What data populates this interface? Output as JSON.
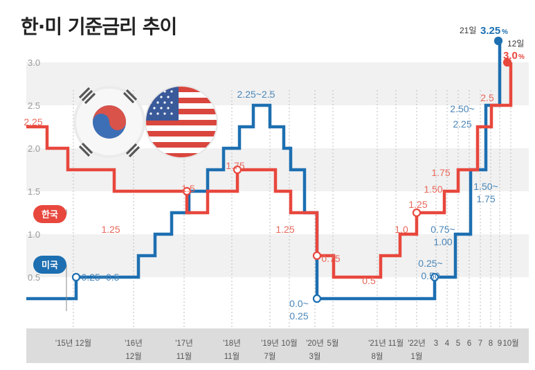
{
  "title": "한·미 기준금리 추이",
  "legend": {
    "korea": "한국",
    "us": "미국"
  },
  "colors": {
    "korea": "#e8473d",
    "us": "#1d6fb1",
    "korea_label": "#e8675a",
    "us_label": "#4a86b8",
    "band": "#f1f1f1",
    "axis_bar": "#dcdcdc"
  },
  "icons": [
    "korea-flag-icon",
    "us-flag-icon"
  ],
  "chart_data": {
    "type": "line",
    "step": true,
    "title": "한·미 기준금리 추이",
    "ylim": [
      0,
      3.25
    ],
    "y_ticks": [
      "0.5",
      "1.0",
      "1.5",
      "2.0",
      "2.5",
      "3.0"
    ],
    "x_ticks": [
      [
        "'15년 12월"
      ],
      [
        "'16년",
        "12월"
      ],
      [
        "'17년",
        "11월"
      ],
      [
        "'18년",
        "11월"
      ],
      [
        "'19년",
        "7월"
      ],
      [
        "10월"
      ],
      [
        "'20년",
        "3월"
      ],
      [
        "5월"
      ],
      [
        "'21년",
        "8월"
      ],
      [
        "11월"
      ],
      [
        "'22년",
        "1월"
      ],
      [
        "3"
      ],
      [
        "4"
      ],
      [
        "5"
      ],
      [
        "6"
      ],
      [
        "7"
      ],
      [
        "8"
      ],
      [
        "9"
      ],
      [
        "10월"
      ]
    ],
    "series": [
      {
        "name": "한국",
        "steps": [
          2.25,
          2.0,
          1.75,
          1.5,
          1.25,
          1.5,
          1.75,
          1.5,
          1.25,
          0.75,
          0.5,
          0.75,
          1.0,
          1.25,
          1.5,
          1.75,
          2.25,
          2.5,
          3.0
        ]
      },
      {
        "name": "미국",
        "steps": [
          0.25,
          0.5,
          0.75,
          1.0,
          1.25,
          1.5,
          1.75,
          2.0,
          2.25,
          2.5,
          2.25,
          2.0,
          1.75,
          1.25,
          0.25,
          0.5,
          1.0,
          1.75,
          2.5,
          3.25
        ]
      }
    ],
    "annotations": {
      "korea": [
        "2.25",
        "1.25",
        "1.5",
        "1.75",
        "1.25",
        "0.75",
        "0.5",
        "1.0",
        "1.25",
        "1.50",
        "1.75",
        "2.5"
      ],
      "us": [
        "0.25~0.5",
        "2.25~2.5",
        "0.0~",
        "0.25",
        "0.25~",
        "0.50",
        "0.75~",
        "1.00",
        "1.50~",
        "1.75",
        "2.50~",
        "2.25"
      ],
      "end_us_day": "21일",
      "end_us_value": "3.25",
      "end_us_unit": "%",
      "end_kr_day": "12일",
      "end_kr_value": "3.0",
      "end_kr_unit": "%"
    }
  }
}
